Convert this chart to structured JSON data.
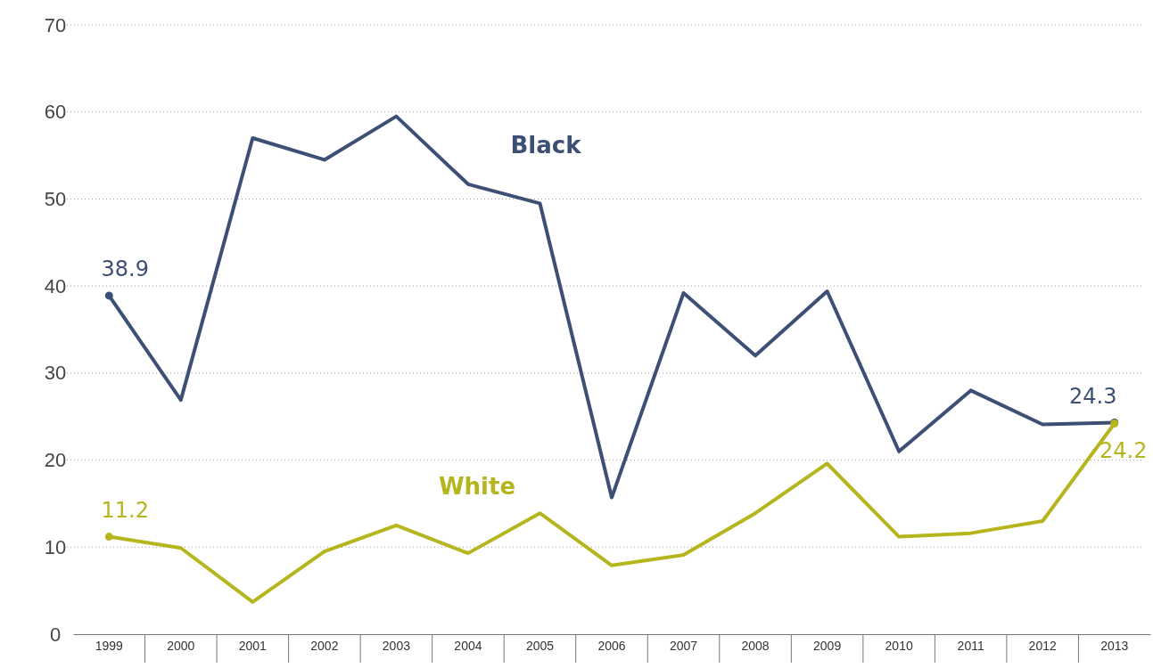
{
  "chart_data": {
    "type": "line",
    "categories": [
      "1999",
      "2000",
      "2001",
      "2002",
      "2003",
      "2004",
      "2005",
      "2006",
      "2007",
      "2008",
      "2009",
      "2010",
      "2011",
      "2012",
      "2013"
    ],
    "series": [
      {
        "name": "Black",
        "color": "#3d4f75",
        "values": [
          38.9,
          26.9,
          57,
          54.5,
          59.5,
          51.7,
          49.5,
          15.7,
          39.2,
          32,
          39.4,
          21,
          28,
          24.1,
          24.3
        ],
        "value_labels": [
          "38.9",
          null,
          null,
          null,
          null,
          null,
          null,
          null,
          null,
          null,
          null,
          null,
          null,
          null,
          "24.3"
        ]
      },
      {
        "name": "White",
        "color": "#b5b51e",
        "values": [
          11.2,
          9.9,
          3.7,
          9.5,
          12.5,
          9.3,
          13.9,
          7.9,
          9.1,
          13.9,
          19.6,
          11.2,
          11.6,
          13,
          24.2
        ],
        "value_labels": [
          "11.2",
          null,
          null,
          null,
          null,
          null,
          null,
          null,
          null,
          null,
          null,
          null,
          null,
          null,
          "24.2"
        ]
      }
    ],
    "ylim": [
      0,
      70
    ],
    "yticks": [
      0,
      10,
      20,
      30,
      40,
      50,
      60,
      70
    ],
    "grid": "y",
    "line_style": "solid"
  }
}
